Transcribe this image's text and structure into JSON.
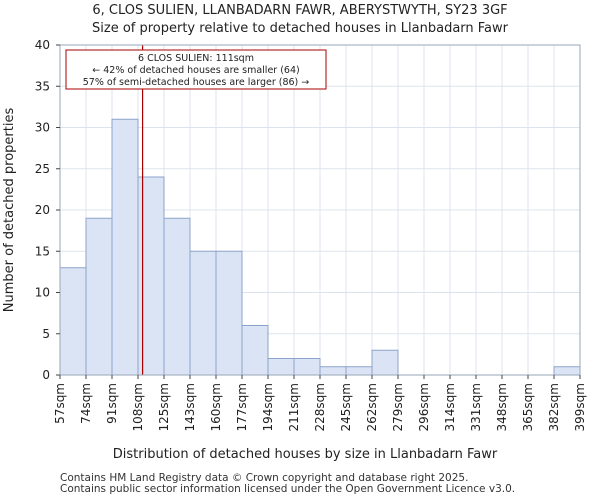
{
  "chart_data": {
    "type": "bar",
    "title": "6, CLOS SULIEN, LLANBADARN FAWR, ABERYSTWYTH, SY23 3GF",
    "subtitle": "Size of property relative to detached houses in Llanbadarn Fawr",
    "xlabel": "Distribution of detached houses by size in Llanbadarn Fawr",
    "ylabel": "Number of detached properties",
    "ylim": [
      0,
      40
    ],
    "yticks": [
      0,
      5,
      10,
      15,
      20,
      25,
      30,
      35,
      40
    ],
    "bin_edges": [
      "57sqm",
      "74sqm",
      "91sqm",
      "108sqm",
      "125sqm",
      "143sqm",
      "160sqm",
      "177sqm",
      "194sqm",
      "211sqm",
      "228sqm",
      "245sqm",
      "262sqm",
      "279sqm",
      "296sqm",
      "314sqm",
      "331sqm",
      "348sqm",
      "365sqm",
      "382sqm",
      "399sqm"
    ],
    "values": [
      13,
      19,
      31,
      24,
      19,
      15,
      15,
      6,
      2,
      2,
      1,
      1,
      3,
      0,
      0,
      0,
      0,
      0,
      0,
      1
    ],
    "bar_color": "#dbe4f4",
    "bar_edge_color": "#8ca3cc",
    "marker": {
      "value_sqm": 111,
      "color": "#aa0000",
      "annotation": [
        "6 CLOS SULIEN: 111sqm",
        "← 42% of detached houses are smaller (64)",
        "57% of semi-detached houses are larger (86) →"
      ]
    },
    "grid": true
  },
  "footer": {
    "line1": "Contains HM Land Registry data © Crown copyright and database right 2025.",
    "line2": "Contains public sector information licensed under the Open Government Licence v3.0."
  }
}
